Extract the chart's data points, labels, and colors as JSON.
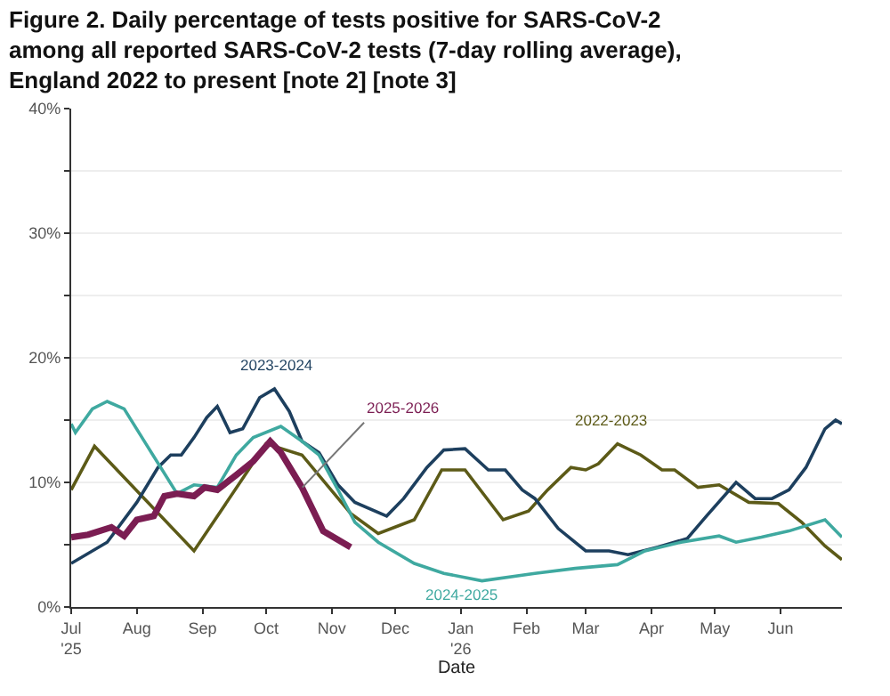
{
  "chart_data": {
    "type": "line",
    "title": "Figure 2. Daily percentage of tests positive for SARS-CoV-2 among all reported SARS-CoV-2 tests (7-day rolling average), England 2022 to present [note 2] [note 3]",
    "xlabel": "Date",
    "xlim": [
      "2025-07-01",
      "2026-06-30"
    ],
    "xticks": [
      {
        "value": "2025-07-01",
        "label": "Jul\n'25"
      },
      {
        "value": "2025-08-01",
        "label": "Aug"
      },
      {
        "value": "2025-09-01",
        "label": "Sep"
      },
      {
        "value": "2025-10-01",
        "label": "Oct"
      },
      {
        "value": "2025-11-01",
        "label": "Nov"
      },
      {
        "value": "2025-12-01",
        "label": "Dec"
      },
      {
        "value": "2026-01-01",
        "label": "Jan\n'26"
      },
      {
        "value": "2026-02-01",
        "label": "Feb"
      },
      {
        "value": "2026-03-01",
        "label": "Mar"
      },
      {
        "value": "2026-04-01",
        "label": "Apr"
      },
      {
        "value": "2026-05-01",
        "label": "May"
      },
      {
        "value": "2026-06-01",
        "label": "Jun"
      }
    ],
    "ylim": [
      0,
      40
    ],
    "yticks": [
      {
        "value": 0,
        "label": "0%"
      },
      {
        "value": 5,
        "label": null
      },
      {
        "value": 10,
        "label": "10%"
      },
      {
        "value": 15,
        "label": null
      },
      {
        "value": 20,
        "label": "20%"
      },
      {
        "value": 25,
        "label": null
      },
      {
        "value": 30,
        "label": "30%"
      },
      {
        "value": 35,
        "label": null
      },
      {
        "value": 40,
        "label": "40%"
      }
    ],
    "grid": "y",
    "legend": false,
    "series": [
      {
        "name": "2022-2023",
        "color": "#5c5a17",
        "x": [
          "2025-07-01",
          "2025-07-12",
          "2025-08-28",
          "2025-10-01",
          "2025-10-18",
          "2025-11-10",
          "2025-11-23",
          "2025-12-10",
          "2025-12-23",
          "2026-01-03",
          "2026-01-21",
          "2026-02-02",
          "2026-02-11",
          "2026-02-22",
          "2026-03-01",
          "2026-03-07",
          "2026-03-16",
          "2026-03-27",
          "2026-04-06",
          "2026-04-12",
          "2026-04-23",
          "2026-05-03",
          "2026-05-17",
          "2026-05-31",
          "2026-06-11",
          "2026-06-22",
          "2026-06-30"
        ],
        "values": [
          9.4,
          12.9,
          4.5,
          13.1,
          12.2,
          7.5,
          5.9,
          7.0,
          11.0,
          11.0,
          7.0,
          7.7,
          9.4,
          11.2,
          11.0,
          11.5,
          13.1,
          12.2,
          11.0,
          11.0,
          9.6,
          9.8,
          8.4,
          8.3,
          6.8,
          4.9,
          3.8
        ]
      },
      {
        "name": "2023-2024",
        "color": "#1d3f5e",
        "x": [
          "2025-07-01",
          "2025-07-18",
          "2025-08-01",
          "2025-08-11",
          "2025-08-17",
          "2025-08-22",
          "2025-08-28",
          "2025-09-03",
          "2025-09-08",
          "2025-09-14",
          "2025-09-20",
          "2025-09-28",
          "2025-10-05",
          "2025-10-12",
          "2025-10-18",
          "2025-10-26",
          "2025-11-04",
          "2025-11-12",
          "2025-11-27",
          "2025-12-05",
          "2025-12-16",
          "2025-12-24",
          "2026-01-03",
          "2026-01-14",
          "2026-01-22",
          "2026-01-30",
          "2026-02-05",
          "2026-02-16",
          "2026-03-01",
          "2026-03-12",
          "2026-03-21",
          "2026-04-04",
          "2026-04-18",
          "2026-04-27",
          "2026-05-11",
          "2026-05-20",
          "2026-05-28",
          "2026-06-05",
          "2026-06-13",
          "2026-06-22",
          "2026-06-27",
          "2026-06-30"
        ],
        "values": [
          3.5,
          5.2,
          8.4,
          11.2,
          12.2,
          12.2,
          13.6,
          15.2,
          16.1,
          14.0,
          14.3,
          16.8,
          17.5,
          15.7,
          13.3,
          12.4,
          9.8,
          8.4,
          7.3,
          8.7,
          11.2,
          12.6,
          12.7,
          11.0,
          11.0,
          9.4,
          8.7,
          6.3,
          4.5,
          4.5,
          4.2,
          4.8,
          5.5,
          7.3,
          10.0,
          8.7,
          8.7,
          9.4,
          11.2,
          14.3,
          15.0,
          14.7
        ]
      },
      {
        "name": "2024-2025",
        "color": "#3fa9a0",
        "x": [
          "2025-07-01",
          "2025-07-03",
          "2025-07-11",
          "2025-07-18",
          "2025-07-26",
          "2025-08-06",
          "2025-08-20",
          "2025-08-28",
          "2025-09-08",
          "2025-09-17",
          "2025-09-25",
          "2025-10-08",
          "2025-10-18",
          "2025-10-26",
          "2025-11-04",
          "2025-11-12",
          "2025-11-23",
          "2025-12-10",
          "2025-12-24",
          "2026-01-11",
          "2026-02-05",
          "2026-02-24",
          "2026-03-16",
          "2026-03-29",
          "2026-04-15",
          "2026-05-03",
          "2026-05-11",
          "2026-05-23",
          "2026-06-05",
          "2026-06-22",
          "2026-06-30"
        ],
        "values": [
          14.7,
          14.0,
          15.9,
          16.5,
          15.9,
          12.9,
          9.1,
          9.8,
          9.6,
          12.2,
          13.6,
          14.5,
          13.3,
          12.2,
          9.4,
          6.8,
          5.2,
          3.5,
          2.7,
          2.1,
          2.7,
          3.1,
          3.4,
          4.5,
          5.2,
          5.7,
          5.2,
          5.6,
          6.1,
          7.0,
          5.6
        ]
      },
      {
        "name": "2025-2026",
        "color": "#7b1d52",
        "x": [
          "2025-07-01",
          "2025-07-09",
          "2025-07-20",
          "2025-07-26",
          "2025-08-01",
          "2025-08-09",
          "2025-08-14",
          "2025-08-20",
          "2025-08-28",
          "2025-09-02",
          "2025-09-08",
          "2025-09-17",
          "2025-09-25",
          "2025-10-03",
          "2025-10-08",
          "2025-10-18",
          "2025-10-28",
          "2025-11-10"
        ],
        "values": [
          5.6,
          5.8,
          6.4,
          5.7,
          7.0,
          7.3,
          8.9,
          9.1,
          8.9,
          9.6,
          9.4,
          10.6,
          11.7,
          13.3,
          12.4,
          9.6,
          6.1,
          4.8
        ]
      }
    ]
  }
}
